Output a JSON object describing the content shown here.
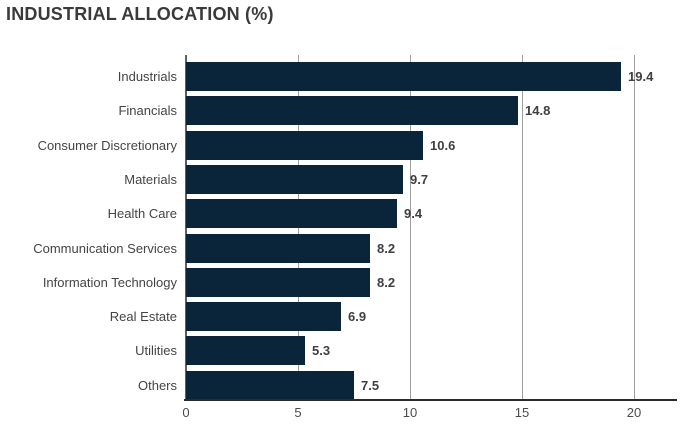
{
  "title": "INDUSTRIAL ALLOCATION (%)",
  "colors": {
    "bar": "#0a2539",
    "gridline": "#9e9e9e",
    "zero_axis": "#5a6169",
    "bottom_axis": "#2b2b2b",
    "title_text": "#3a3a3a",
    "category_text": "#444444",
    "value_text": "#3f3f3f",
    "tick_text": "#4b4b4b"
  },
  "chart_data": {
    "type": "bar",
    "orientation": "horizontal",
    "title": "INDUSTRIAL ALLOCATION (%)",
    "categories": [
      "Industrials",
      "Financials",
      "Consumer Discretionary",
      "Materials",
      "Health Care",
      "Communication Services",
      "Information Technology",
      "Real Estate",
      "Utilities",
      "Others"
    ],
    "values": [
      19.4,
      14.8,
      10.6,
      9.7,
      9.4,
      8.2,
      8.2,
      6.9,
      5.3,
      7.5
    ],
    "value_labels": [
      "19.4",
      "14.8",
      "10.6",
      "9.7",
      "9.4",
      "8.2",
      "8.2",
      "6.9",
      "5.3",
      "7.5"
    ],
    "xlabel": "",
    "ylabel": "",
    "xticks": [
      0,
      5,
      10,
      15,
      20
    ],
    "xtick_labels": [
      "0",
      "5",
      "10",
      "15",
      "20"
    ],
    "xlim": [
      0,
      21.9
    ],
    "grid": true,
    "legend": false
  }
}
